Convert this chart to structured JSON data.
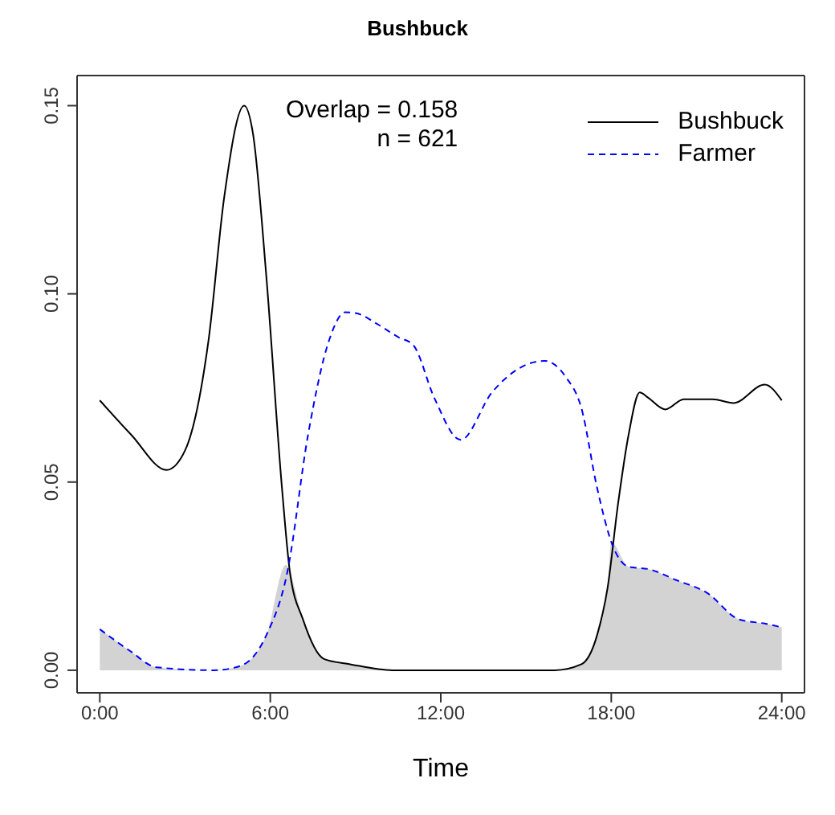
{
  "chart_data": {
    "type": "line",
    "title": "Bushbuck",
    "xlabel": "Time",
    "annotations": [
      "Overlap = 0.158",
      "n = 621"
    ],
    "legend": "top right",
    "grid": false,
    "marker": "none",
    "xlim": [
      -0.8,
      24.8
    ],
    "xticks": [
      {
        "value": 0,
        "label": "0:00"
      },
      {
        "value": 6,
        "label": "6:00"
      },
      {
        "value": 12,
        "label": "12:00"
      },
      {
        "value": 18,
        "label": "18:00"
      },
      {
        "value": 24,
        "label": "24:00"
      }
    ],
    "ylim": [
      -0.006,
      0.158
    ],
    "yticks": [
      {
        "value": 0,
        "label": "0.00"
      },
      {
        "value": 0.05,
        "label": "0.05"
      },
      {
        "value": 0.1,
        "label": "0.10"
      },
      {
        "value": 0.15,
        "label": "0.15"
      }
    ],
    "series": [
      {
        "type": "area",
        "color": "#d3d3d3",
        "x": [
          0,
          1.07,
          1.99,
          4,
          4.93,
          5.86,
          6.55,
          6.69,
          7.15,
          7.89,
          8.81,
          10.3,
          16,
          16.95,
          17.5,
          17.87,
          18.0,
          18.61,
          19.35,
          20.27,
          21.38,
          22.5,
          23.4,
          24
        ],
        "values": [
          0.0109,
          0.0051,
          0.0008,
          0,
          0.0011,
          0.0093,
          0.028,
          0.0261,
          0.0135,
          0.003,
          0.0016,
          0,
          0,
          0.0016,
          0.0093,
          0.0219,
          0.034,
          0.0275,
          0.0268,
          0.024,
          0.0205,
          0.0135,
          0.0124,
          0.0114
        ]
      },
      {
        "name": "Bushbuck",
        "color": "#000000",
        "line_style": "solid",
        "x": [
          0,
          1.1,
          2.35,
          3.0,
          3.83,
          4.38,
          5.08,
          5.39,
          5.86,
          6.41,
          6.69,
          7.15,
          7.89,
          8.81,
          10.3,
          16.0,
          16.95,
          17.5,
          17.87,
          18.24,
          18.61,
          19.0,
          19.3,
          19.9,
          20.55,
          21.56,
          22.3,
          23.4,
          24
        ],
        "values": [
          0.0717,
          0.0626,
          0.0532,
          0.0584,
          0.0879,
          0.1258,
          0.15,
          0.1426,
          0.1047,
          0.0485,
          0.0261,
          0.0135,
          0.003,
          0.0016,
          0,
          0,
          0.0016,
          0.0093,
          0.0219,
          0.0443,
          0.0626,
          0.0738,
          0.0724,
          0.0693,
          0.072,
          0.072,
          0.071,
          0.0759,
          0.0717
        ]
      },
      {
        "name": "Farmer",
        "color": "#0000ff",
        "line_style": "dashed",
        "x": [
          0,
          1.07,
          1.99,
          4.0,
          4.93,
          5.86,
          6.6,
          7.33,
          8.08,
          8.63,
          9.0,
          9.74,
          10.5,
          11.03,
          11.77,
          12.7,
          13.8,
          14.73,
          15.65,
          16.39,
          16.95,
          17.5,
          18.05,
          18.61,
          19.35,
          20.27,
          21.38,
          22.5,
          23.4,
          24
        ],
        "values": [
          0.0109,
          0.0051,
          0.0008,
          0,
          0.0011,
          0.0093,
          0.0261,
          0.0626,
          0.0879,
          0.0951,
          0.0949,
          0.0921,
          0.0885,
          0.0864,
          0.0724,
          0.0612,
          0.0738,
          0.0801,
          0.0822,
          0.078,
          0.0696,
          0.0485,
          0.0331,
          0.0275,
          0.0268,
          0.024,
          0.0205,
          0.0135,
          0.0124,
          0.0114
        ]
      }
    ]
  }
}
